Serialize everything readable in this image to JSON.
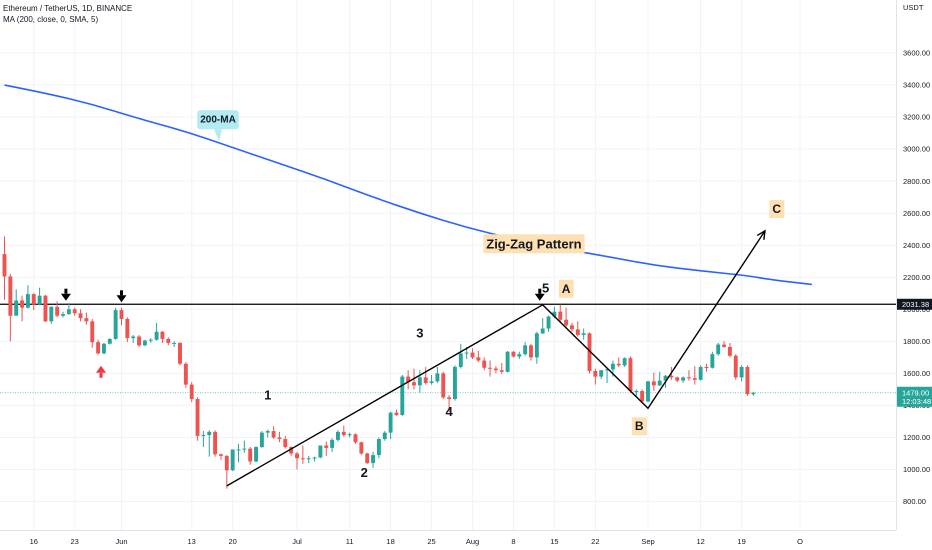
{
  "header": {
    "symbol_line": "Ethereum / TetherUS, 1D, BINANCE",
    "indicator_line": "MA (200, close, 0, SMA, 5)"
  },
  "colors": {
    "up": "#26a69a",
    "down": "#ef5350",
    "ma": "#2962ff",
    "zigzag": "#000000",
    "price_line": "#26a69a",
    "resistance_label_bg": "#131722",
    "tag_bg": "#ffe0b2",
    "ma_tag_bg": "#b2ebf2",
    "arrow_down": "#000000",
    "arrow_up": "#f23645"
  },
  "chart_data": {
    "type": "candlestick",
    "title": "Ethereum / TetherUS, 1D, BINANCE",
    "indicator": "MA (200, close, 0, SMA, 5)",
    "y_unit": "USDT",
    "yscale": "linear",
    "ylim": [
      700,
      3800
    ],
    "y_ticks": [
      800,
      1000,
      1200,
      1400,
      1600,
      1800,
      2000,
      2200,
      2400,
      2600,
      2800,
      3000,
      3200,
      3400,
      3600
    ],
    "y_tick_labels": [
      "800.00",
      "1000.00",
      "1200.00",
      "1400.00",
      "1600.00",
      "1800.00",
      "2000.00",
      "2200.00",
      "2400.00",
      "2600.00",
      "2800.00",
      "3000.00",
      "3200.00",
      "3400.00",
      "3600.00"
    ],
    "x_tick_labels": [
      "16",
      "23",
      "Jun",
      "13",
      "20",
      "Jul",
      "11",
      "18",
      "25",
      "Aug",
      "8",
      "15",
      "22",
      "Sep",
      "12",
      "19",
      "O"
    ],
    "x_tick_candle_index": [
      5,
      12,
      20,
      32,
      39,
      50,
      59,
      66,
      73,
      80,
      87,
      94,
      101,
      110,
      119,
      126,
      136
    ],
    "grid": true,
    "candles": [
      {
        "d": "2022-05-11",
        "o": 2345,
        "h": 2455,
        "l": 2060,
        "c": 2205
      },
      {
        "d": "2022-05-12",
        "o": 2205,
        "h": 2220,
        "l": 1800,
        "c": 1960
      },
      {
        "d": "2022-05-13",
        "o": 1960,
        "h": 2125,
        "l": 1960,
        "c": 2055
      },
      {
        "d": "2022-05-14",
        "o": 2055,
        "h": 2085,
        "l": 1925,
        "c": 2010
      },
      {
        "d": "2022-05-15",
        "o": 2010,
        "h": 2150,
        "l": 2005,
        "c": 2095
      },
      {
        "d": "2022-05-16",
        "o": 2095,
        "h": 2100,
        "l": 1995,
        "c": 2030
      },
      {
        "d": "2022-05-17",
        "o": 2030,
        "h": 2135,
        "l": 2025,
        "c": 2085
      },
      {
        "d": "2022-05-18",
        "o": 2085,
        "h": 2090,
        "l": 1920,
        "c": 1925
      },
      {
        "d": "2022-05-19",
        "o": 1925,
        "h": 2020,
        "l": 1910,
        "c": 2015
      },
      {
        "d": "2022-05-20",
        "o": 2015,
        "h": 2050,
        "l": 1950,
        "c": 1960
      },
      {
        "d": "2022-05-21",
        "o": 1960,
        "h": 1985,
        "l": 1950,
        "c": 1970
      },
      {
        "d": "2022-05-22",
        "o": 1970,
        "h": 2040,
        "l": 1965,
        "c": 2000
      },
      {
        "d": "2022-05-23",
        "o": 2000,
        "h": 2010,
        "l": 1960,
        "c": 1975
      },
      {
        "d": "2022-05-24",
        "o": 1975,
        "h": 2000,
        "l": 1925,
        "c": 1945
      },
      {
        "d": "2022-05-25",
        "o": 1945,
        "h": 1980,
        "l": 1905,
        "c": 1925
      },
      {
        "d": "2022-05-26",
        "o": 1925,
        "h": 1940,
        "l": 1760,
        "c": 1795
      },
      {
        "d": "2022-05-27",
        "o": 1795,
        "h": 1810,
        "l": 1715,
        "c": 1725
      },
      {
        "d": "2022-05-28",
        "o": 1725,
        "h": 1790,
        "l": 1720,
        "c": 1785
      },
      {
        "d": "2022-05-29",
        "o": 1785,
        "h": 1820,
        "l": 1780,
        "c": 1815
      },
      {
        "d": "2022-05-30",
        "o": 1815,
        "h": 2010,
        "l": 1810,
        "c": 1995
      },
      {
        "d": "2022-05-31",
        "o": 1995,
        "h": 2010,
        "l": 1900,
        "c": 1940
      },
      {
        "d": "2022-06-01",
        "o": 1940,
        "h": 1950,
        "l": 1795,
        "c": 1820
      },
      {
        "d": "2022-06-02",
        "o": 1820,
        "h": 1840,
        "l": 1790,
        "c": 1830
      },
      {
        "d": "2022-06-03",
        "o": 1830,
        "h": 1840,
        "l": 1765,
        "c": 1775
      },
      {
        "d": "2022-06-04",
        "o": 1775,
        "h": 1810,
        "l": 1770,
        "c": 1805
      },
      {
        "d": "2022-06-05",
        "o": 1805,
        "h": 1820,
        "l": 1790,
        "c": 1810
      },
      {
        "d": "2022-06-06",
        "o": 1810,
        "h": 1915,
        "l": 1805,
        "c": 1860
      },
      {
        "d": "2022-06-07",
        "o": 1860,
        "h": 1865,
        "l": 1790,
        "c": 1815
      },
      {
        "d": "2022-06-08",
        "o": 1815,
        "h": 1825,
        "l": 1775,
        "c": 1790
      },
      {
        "d": "2022-06-09",
        "o": 1790,
        "h": 1800,
        "l": 1765,
        "c": 1790
      },
      {
        "d": "2022-06-10",
        "o": 1790,
        "h": 1795,
        "l": 1650,
        "c": 1660
      },
      {
        "d": "2022-06-11",
        "o": 1660,
        "h": 1670,
        "l": 1510,
        "c": 1530
      },
      {
        "d": "2022-06-12",
        "o": 1530,
        "h": 1545,
        "l": 1420,
        "c": 1440
      },
      {
        "d": "2022-06-13",
        "o": 1440,
        "h": 1450,
        "l": 1180,
        "c": 1210
      },
      {
        "d": "2022-06-14",
        "o": 1210,
        "h": 1240,
        "l": 1140,
        "c": 1215
      },
      {
        "d": "2022-06-15",
        "o": 1215,
        "h": 1245,
        "l": 1080,
        "c": 1235
      },
      {
        "d": "2022-06-16",
        "o": 1235,
        "h": 1245,
        "l": 1080,
        "c": 1095
      },
      {
        "d": "2022-06-17",
        "o": 1095,
        "h": 1100,
        "l": 1060,
        "c": 1085
      },
      {
        "d": "2022-06-18",
        "o": 1085,
        "h": 1090,
        "l": 880,
        "c": 995
      },
      {
        "d": "2022-06-19",
        "o": 995,
        "h": 1125,
        "l": 990,
        "c": 1125
      },
      {
        "d": "2022-06-20",
        "o": 1125,
        "h": 1160,
        "l": 1045,
        "c": 1125
      },
      {
        "d": "2022-06-21",
        "o": 1125,
        "h": 1180,
        "l": 1105,
        "c": 1130
      },
      {
        "d": "2022-06-22",
        "o": 1130,
        "h": 1140,
        "l": 1030,
        "c": 1050
      },
      {
        "d": "2022-06-23",
        "o": 1050,
        "h": 1145,
        "l": 1045,
        "c": 1140
      },
      {
        "d": "2022-06-24",
        "o": 1140,
        "h": 1240,
        "l": 1135,
        "c": 1230
      },
      {
        "d": "2022-06-25",
        "o": 1230,
        "h": 1250,
        "l": 1200,
        "c": 1240
      },
      {
        "d": "2022-06-26",
        "o": 1240,
        "h": 1270,
        "l": 1190,
        "c": 1200
      },
      {
        "d": "2022-06-27",
        "o": 1200,
        "h": 1235,
        "l": 1170,
        "c": 1190
      },
      {
        "d": "2022-06-28",
        "o": 1190,
        "h": 1210,
        "l": 1130,
        "c": 1140
      },
      {
        "d": "2022-06-29",
        "o": 1140,
        "h": 1145,
        "l": 1085,
        "c": 1100
      },
      {
        "d": "2022-06-30",
        "o": 1100,
        "h": 1110,
        "l": 1000,
        "c": 1070
      },
      {
        "d": "2022-07-01",
        "o": 1070,
        "h": 1150,
        "l": 1035,
        "c": 1065
      },
      {
        "d": "2022-07-02",
        "o": 1065,
        "h": 1085,
        "l": 1040,
        "c": 1070
      },
      {
        "d": "2022-07-03",
        "o": 1070,
        "h": 1080,
        "l": 1050,
        "c": 1075
      },
      {
        "d": "2022-07-04",
        "o": 1075,
        "h": 1150,
        "l": 1070,
        "c": 1150
      },
      {
        "d": "2022-07-05",
        "o": 1150,
        "h": 1175,
        "l": 1085,
        "c": 1135
      },
      {
        "d": "2022-07-06",
        "o": 1135,
        "h": 1195,
        "l": 1110,
        "c": 1185
      },
      {
        "d": "2022-07-07",
        "o": 1185,
        "h": 1245,
        "l": 1175,
        "c": 1235
      },
      {
        "d": "2022-07-08",
        "o": 1235,
        "h": 1275,
        "l": 1205,
        "c": 1215
      },
      {
        "d": "2022-07-09",
        "o": 1215,
        "h": 1230,
        "l": 1200,
        "c": 1220
      },
      {
        "d": "2022-07-10",
        "o": 1220,
        "h": 1225,
        "l": 1160,
        "c": 1170
      },
      {
        "d": "2022-07-11",
        "o": 1170,
        "h": 1175,
        "l": 1090,
        "c": 1100
      },
      {
        "d": "2022-07-12",
        "o": 1100,
        "h": 1105,
        "l": 1035,
        "c": 1040
      },
      {
        "d": "2022-07-13",
        "o": 1040,
        "h": 1110,
        "l": 1010,
        "c": 1090
      },
      {
        "d": "2022-07-14",
        "o": 1090,
        "h": 1200,
        "l": 1070,
        "c": 1190
      },
      {
        "d": "2022-07-15",
        "o": 1190,
        "h": 1240,
        "l": 1180,
        "c": 1230
      },
      {
        "d": "2022-07-16",
        "o": 1230,
        "h": 1360,
        "l": 1190,
        "c": 1355
      },
      {
        "d": "2022-07-17",
        "o": 1355,
        "h": 1375,
        "l": 1335,
        "c": 1340
      },
      {
        "d": "2022-07-18",
        "o": 1340,
        "h": 1590,
        "l": 1335,
        "c": 1580
      },
      {
        "d": "2022-07-19",
        "o": 1580,
        "h": 1620,
        "l": 1500,
        "c": 1545
      },
      {
        "d": "2022-07-20",
        "o": 1545,
        "h": 1630,
        "l": 1500,
        "c": 1525
      },
      {
        "d": "2022-07-21",
        "o": 1525,
        "h": 1620,
        "l": 1480,
        "c": 1575
      },
      {
        "d": "2022-07-22",
        "o": 1575,
        "h": 1640,
        "l": 1530,
        "c": 1540
      },
      {
        "d": "2022-07-23",
        "o": 1540,
        "h": 1590,
        "l": 1530,
        "c": 1550
      },
      {
        "d": "2022-07-24",
        "o": 1550,
        "h": 1640,
        "l": 1540,
        "c": 1600
      },
      {
        "d": "2022-07-25",
        "o": 1600,
        "h": 1610,
        "l": 1440,
        "c": 1450
      },
      {
        "d": "2022-07-26",
        "o": 1450,
        "h": 1465,
        "l": 1360,
        "c": 1440
      },
      {
        "d": "2022-07-27",
        "o": 1440,
        "h": 1650,
        "l": 1430,
        "c": 1640
      },
      {
        "d": "2022-07-28",
        "o": 1640,
        "h": 1785,
        "l": 1630,
        "c": 1725
      },
      {
        "d": "2022-07-29",
        "o": 1725,
        "h": 1765,
        "l": 1690,
        "c": 1730
      },
      {
        "d": "2022-07-30",
        "o": 1730,
        "h": 1755,
        "l": 1690,
        "c": 1700
      },
      {
        "d": "2022-07-31",
        "o": 1700,
        "h": 1740,
        "l": 1670,
        "c": 1680
      },
      {
        "d": "2022-08-01",
        "o": 1680,
        "h": 1700,
        "l": 1620,
        "c": 1635
      },
      {
        "d": "2022-08-02",
        "o": 1635,
        "h": 1680,
        "l": 1580,
        "c": 1630
      },
      {
        "d": "2022-08-03",
        "o": 1630,
        "h": 1645,
        "l": 1600,
        "c": 1620
      },
      {
        "d": "2022-08-04",
        "o": 1620,
        "h": 1665,
        "l": 1595,
        "c": 1610
      },
      {
        "d": "2022-08-05",
        "o": 1610,
        "h": 1740,
        "l": 1605,
        "c": 1735
      },
      {
        "d": "2022-08-06",
        "o": 1735,
        "h": 1740,
        "l": 1700,
        "c": 1705
      },
      {
        "d": "2022-08-07",
        "o": 1705,
        "h": 1735,
        "l": 1690,
        "c": 1720
      },
      {
        "d": "2022-08-08",
        "o": 1720,
        "h": 1795,
        "l": 1710,
        "c": 1775
      },
      {
        "d": "2022-08-09",
        "o": 1775,
        "h": 1785,
        "l": 1680,
        "c": 1700
      },
      {
        "d": "2022-08-10",
        "o": 1700,
        "h": 1860,
        "l": 1660,
        "c": 1850
      },
      {
        "d": "2022-08-11",
        "o": 1850,
        "h": 1945,
        "l": 1845,
        "c": 1880
      },
      {
        "d": "2022-08-12",
        "o": 1880,
        "h": 1960,
        "l": 1860,
        "c": 1955
      },
      {
        "d": "2022-08-13",
        "o": 1955,
        "h": 2015,
        "l": 1945,
        "c": 1985
      },
      {
        "d": "2022-08-14",
        "o": 1985,
        "h": 2030,
        "l": 1920,
        "c": 1935
      },
      {
        "d": "2022-08-15",
        "o": 1935,
        "h": 2010,
        "l": 1880,
        "c": 1900
      },
      {
        "d": "2022-08-16",
        "o": 1900,
        "h": 1915,
        "l": 1860,
        "c": 1875
      },
      {
        "d": "2022-08-17",
        "o": 1875,
        "h": 1925,
        "l": 1830,
        "c": 1840
      },
      {
        "d": "2022-08-18",
        "o": 1840,
        "h": 1880,
        "l": 1810,
        "c": 1850
      },
      {
        "d": "2022-08-19",
        "o": 1850,
        "h": 1855,
        "l": 1600,
        "c": 1615
      },
      {
        "d": "2022-08-20",
        "o": 1615,
        "h": 1630,
        "l": 1530,
        "c": 1580
      },
      {
        "d": "2022-08-21",
        "o": 1580,
        "h": 1620,
        "l": 1565,
        "c": 1620
      },
      {
        "d": "2022-08-22",
        "o": 1620,
        "h": 1630,
        "l": 1540,
        "c": 1625
      },
      {
        "d": "2022-08-23",
        "o": 1625,
        "h": 1680,
        "l": 1580,
        "c": 1660
      },
      {
        "d": "2022-08-24",
        "o": 1660,
        "h": 1700,
        "l": 1640,
        "c": 1650
      },
      {
        "d": "2022-08-25",
        "o": 1650,
        "h": 1700,
        "l": 1640,
        "c": 1695
      },
      {
        "d": "2022-08-26",
        "o": 1695,
        "h": 1705,
        "l": 1480,
        "c": 1490
      },
      {
        "d": "2022-08-27",
        "o": 1490,
        "h": 1500,
        "l": 1450,
        "c": 1490
      },
      {
        "d": "2022-08-28",
        "o": 1490,
        "h": 1500,
        "l": 1420,
        "c": 1425
      },
      {
        "d": "2022-08-29",
        "o": 1425,
        "h": 1555,
        "l": 1420,
        "c": 1550
      },
      {
        "d": "2022-08-30",
        "o": 1550,
        "h": 1605,
        "l": 1490,
        "c": 1525
      },
      {
        "d": "2022-08-31",
        "o": 1525,
        "h": 1610,
        "l": 1520,
        "c": 1555
      },
      {
        "d": "2022-09-01",
        "o": 1555,
        "h": 1590,
        "l": 1510,
        "c": 1585
      },
      {
        "d": "2022-09-02",
        "o": 1585,
        "h": 1640,
        "l": 1560,
        "c": 1575
      },
      {
        "d": "2022-09-03",
        "o": 1575,
        "h": 1580,
        "l": 1545,
        "c": 1555
      },
      {
        "d": "2022-09-04",
        "o": 1555,
        "h": 1580,
        "l": 1540,
        "c": 1575
      },
      {
        "d": "2022-09-05",
        "o": 1575,
        "h": 1620,
        "l": 1555,
        "c": 1570
      },
      {
        "d": "2022-09-06",
        "o": 1570,
        "h": 1645,
        "l": 1530,
        "c": 1560
      },
      {
        "d": "2022-09-07",
        "o": 1560,
        "h": 1650,
        "l": 1555,
        "c": 1640
      },
      {
        "d": "2022-09-08",
        "o": 1640,
        "h": 1660,
        "l": 1610,
        "c": 1635
      },
      {
        "d": "2022-09-09",
        "o": 1635,
        "h": 1735,
        "l": 1630,
        "c": 1720
      },
      {
        "d": "2022-09-10",
        "o": 1720,
        "h": 1790,
        "l": 1710,
        "c": 1780
      },
      {
        "d": "2022-09-11",
        "o": 1780,
        "h": 1800,
        "l": 1760,
        "c": 1765
      },
      {
        "d": "2022-09-12",
        "o": 1765,
        "h": 1790,
        "l": 1700,
        "c": 1710
      },
      {
        "d": "2022-09-13",
        "o": 1710,
        "h": 1720,
        "l": 1560,
        "c": 1575
      },
      {
        "d": "2022-09-14",
        "o": 1575,
        "h": 1650,
        "l": 1550,
        "c": 1640
      },
      {
        "d": "2022-09-15",
        "o": 1640,
        "h": 1650,
        "l": 1460,
        "c": 1470
      },
      {
        "d": "2022-09-16",
        "o": 1470,
        "h": 1485,
        "l": 1460,
        "c": 1479
      }
    ],
    "ma_series": {
      "name": "200-MA",
      "points": [
        [
          0,
          3400
        ],
        [
          7,
          3350
        ],
        [
          15,
          3280
        ],
        [
          23,
          3190
        ],
        [
          31,
          3110
        ],
        [
          39,
          3010
        ],
        [
          47,
          2910
        ],
        [
          55,
          2810
        ],
        [
          63,
          2700
        ],
        [
          71,
          2600
        ],
        [
          79,
          2510
        ],
        [
          87,
          2440
        ],
        [
          95,
          2380
        ],
        [
          103,
          2330
        ],
        [
          111,
          2275
        ],
        [
          119,
          2240
        ],
        [
          127,
          2210
        ],
        [
          131,
          2185
        ],
        [
          138,
          2155
        ]
      ]
    },
    "zigzag_lines": [
      {
        "points": [
          [
            38,
            898
          ],
          [
            92,
            2028
          ],
          [
            110,
            1382
          ],
          [
            130,
            2490
          ]
        ]
      }
    ],
    "horizontal_lines": [
      {
        "value": 2031.38,
        "label": "2031.38"
      }
    ],
    "current_price": {
      "value": 1479,
      "label": "1479.00",
      "countdown": "12:03:48"
    },
    "annotations": [
      {
        "text": "1",
        "x": 45,
        "y": 1468
      },
      {
        "text": "2",
        "x": 61.5,
        "y": 985
      },
      {
        "text": "3",
        "x": 71,
        "y": 1855
      },
      {
        "text": "4",
        "x": 76,
        "y": 1365
      },
      {
        "text": "5",
        "x": 92.5,
        "y": 2135
      }
    ],
    "tags": [
      {
        "text": "A",
        "x": 96,
        "y": 2130,
        "style": "tag"
      },
      {
        "text": "B",
        "x": 108.5,
        "y": 1272,
        "style": "tag"
      },
      {
        "text": "C",
        "x": 132,
        "y": 2628,
        "style": "tag"
      },
      {
        "text": "Zig-Zag Pattern",
        "x": 90.5,
        "y": 2410,
        "style": "tag"
      },
      {
        "text": "200-MA",
        "x": 36.5,
        "y": 3190,
        "style": "ma-tag"
      }
    ],
    "markers": [
      {
        "type": "down-arrow",
        "x": 10.5,
        "y": 2085
      },
      {
        "type": "down-arrow",
        "x": 20,
        "y": 2075
      },
      {
        "type": "down-arrow",
        "x": 91.5,
        "y": 2085
      },
      {
        "type": "up-arrow",
        "x": 16.5,
        "y": 1610
      }
    ]
  }
}
